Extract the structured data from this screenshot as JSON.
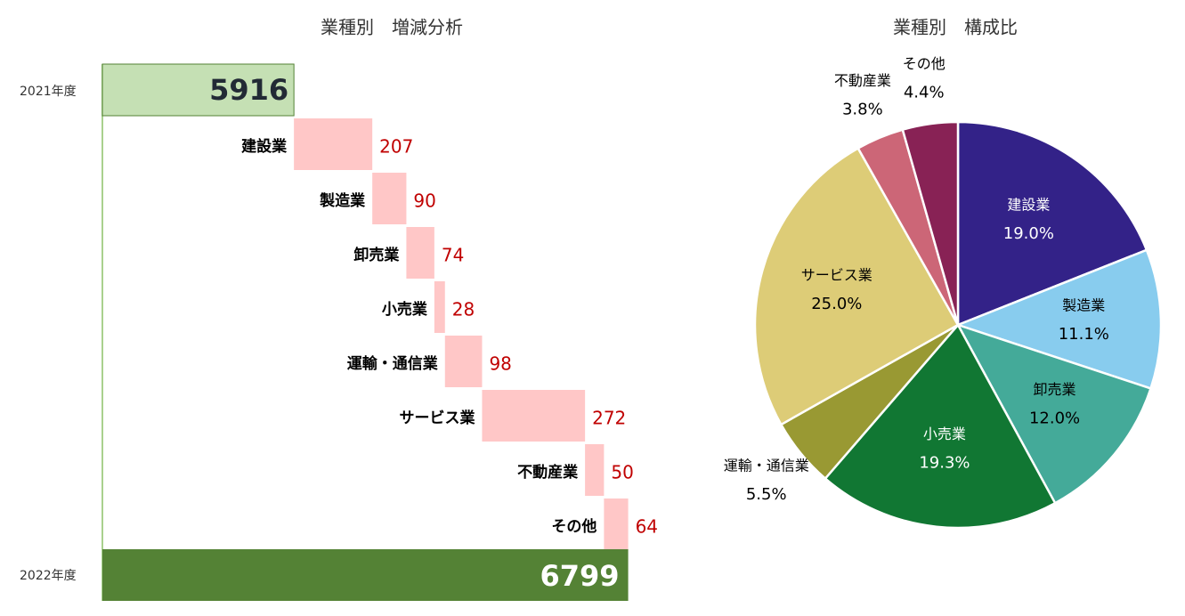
{
  "chart_data": [
    {
      "type": "waterfall",
      "title": "業種別　増減分析",
      "start": {
        "label": "2021年度",
        "value": 5916
      },
      "end": {
        "label": "2022年度",
        "value": 6799
      },
      "categories": [
        "建設業",
        "製造業",
        "卸売業",
        "小売業",
        "運輸・通信業",
        "サービス業",
        "不動産業",
        "その他"
      ],
      "values": [
        207,
        90,
        74,
        28,
        98,
        272,
        50,
        64
      ],
      "xlim": [
        5410,
        6800
      ],
      "start_color": "#c5e0b4",
      "increase_color": "#ffc7c7",
      "end_color": "#548235"
    },
    {
      "type": "pie",
      "title": "業種別　構成比",
      "categories": [
        "建設業",
        "製造業",
        "卸売業",
        "小売業",
        "運輸・通信業",
        "サービス業",
        "不動産業",
        "その他"
      ],
      "values": [
        19.0,
        11.1,
        12.0,
        19.3,
        5.5,
        25.0,
        3.8,
        4.4
      ],
      "value_labels": [
        "19.0%",
        "11.1%",
        "12.0%",
        "19.3%",
        "5.5%",
        "25.0%",
        "3.8%",
        "4.4%"
      ],
      "colors": [
        "#332288",
        "#88ccee",
        "#44aa99",
        "#117733",
        "#999933",
        "#ddcc77",
        "#cc6677",
        "#882255"
      ]
    }
  ]
}
